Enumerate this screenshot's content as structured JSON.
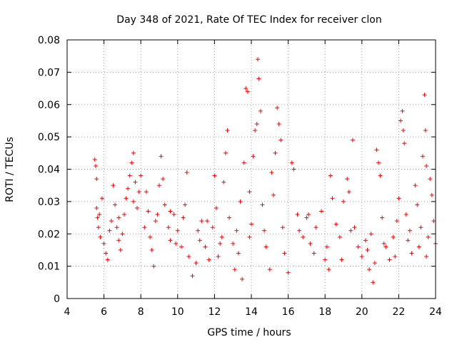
{
  "chart_data": {
    "type": "scatter",
    "title": "Day 348 of 2021, Rate Of TEC Index for receiver clon",
    "xlabel": "GPS time / hours",
    "ylabel": "ROTI / TECUs",
    "xlim": [
      4,
      24
    ],
    "ylim": [
      0,
      0.08
    ],
    "x_ticks": [
      4,
      6,
      8,
      10,
      12,
      14,
      16,
      18,
      20,
      22,
      24
    ],
    "x_tick_labels": [
      "4",
      "6",
      "8",
      "10",
      "12",
      "14",
      "16",
      "18",
      "20",
      "22",
      "24"
    ],
    "y_ticks": [
      0,
      0.01,
      0.02,
      0.03,
      0.04,
      0.05,
      0.06,
      0.07,
      0.08
    ],
    "y_tick_labels": [
      "0",
      "0.01",
      "0.02",
      "0.03",
      "0.04",
      "0.05",
      "0.06",
      "0.07",
      "0.08"
    ],
    "grid": true,
    "marker": "+",
    "color": "#ff0000",
    "series": [
      {
        "name": "ROTI",
        "points": [
          [
            5.5,
            0.043
          ],
          [
            5.55,
            0.041
          ],
          [
            5.6,
            0.037
          ],
          [
            5.6,
            0.028
          ],
          [
            5.65,
            0.025
          ],
          [
            5.7,
            0.022
          ],
          [
            5.75,
            0.026
          ],
          [
            5.8,
            0.019
          ],
          [
            5.9,
            0.031
          ],
          [
            6.0,
            0.017
          ],
          [
            6.1,
            0.014
          ],
          [
            6.2,
            0.012
          ],
          [
            6.3,
            0.021
          ],
          [
            6.4,
            0.024
          ],
          [
            6.5,
            0.035
          ],
          [
            6.6,
            0.029
          ],
          [
            6.7,
            0.022
          ],
          [
            6.8,
            0.018
          ],
          [
            6.9,
            0.015
          ],
          [
            7.0,
            0.02
          ],
          [
            7.1,
            0.026
          ],
          [
            7.2,
            0.031
          ],
          [
            7.3,
            0.034
          ],
          [
            7.4,
            0.038
          ],
          [
            7.5,
            0.042
          ],
          [
            7.6,
            0.045
          ],
          [
            7.7,
            0.036
          ],
          [
            7.8,
            0.028
          ],
          [
            7.9,
            0.033
          ],
          [
            8.0,
            0.038
          ],
          [
            8.2,
            0.022
          ],
          [
            8.4,
            0.027
          ],
          [
            8.5,
            0.019
          ],
          [
            8.6,
            0.015
          ],
          [
            8.7,
            0.01
          ],
          [
            8.8,
            0.024
          ],
          [
            9.0,
            0.035
          ],
          [
            9.1,
            0.044
          ],
          [
            9.2,
            0.037
          ],
          [
            9.3,
            0.029
          ],
          [
            9.5,
            0.022
          ],
          [
            9.6,
            0.018
          ],
          [
            9.8,
            0.026
          ],
          [
            10.0,
            0.021
          ],
          [
            10.2,
            0.016
          ],
          [
            10.4,
            0.029
          ],
          [
            10.5,
            0.039
          ],
          [
            10.6,
            0.013
          ],
          [
            10.8,
            0.007
          ],
          [
            11.0,
            0.011
          ],
          [
            11.2,
            0.018
          ],
          [
            11.3,
            0.024
          ],
          [
            11.5,
            0.016
          ],
          [
            11.7,
            0.012
          ],
          [
            11.9,
            0.022
          ],
          [
            12.0,
            0.038
          ],
          [
            12.1,
            0.028
          ],
          [
            12.2,
            0.013
          ],
          [
            12.4,
            0.019
          ],
          [
            12.5,
            0.036
          ],
          [
            12.6,
            0.045
          ],
          [
            12.7,
            0.052
          ],
          [
            12.8,
            0.025
          ],
          [
            13.0,
            0.017
          ],
          [
            13.1,
            0.009
          ],
          [
            13.2,
            0.021
          ],
          [
            13.4,
            0.03
          ],
          [
            13.5,
            0.006
          ],
          [
            13.6,
            0.042
          ],
          [
            13.7,
            0.065
          ],
          [
            13.8,
            0.064
          ],
          [
            13.9,
            0.033
          ],
          [
            14.0,
            0.023
          ],
          [
            14.1,
            0.044
          ],
          [
            14.2,
            0.052
          ],
          [
            14.3,
            0.054
          ],
          [
            14.35,
            0.074
          ],
          [
            14.4,
            0.068
          ],
          [
            14.5,
            0.058
          ],
          [
            14.6,
            0.029
          ],
          [
            14.8,
            0.016
          ],
          [
            15.0,
            0.009
          ],
          [
            15.1,
            0.039
          ],
          [
            15.2,
            0.032
          ],
          [
            15.3,
            0.045
          ],
          [
            15.4,
            0.059
          ],
          [
            15.5,
            0.054
          ],
          [
            15.6,
            0.049
          ],
          [
            15.8,
            0.014
          ],
          [
            16.0,
            0.008
          ],
          [
            16.2,
            0.042
          ],
          [
            16.3,
            0.04
          ],
          [
            16.5,
            0.026
          ],
          [
            16.8,
            0.019
          ],
          [
            17.0,
            0.025
          ],
          [
            17.2,
            0.017
          ],
          [
            17.5,
            0.022
          ],
          [
            17.8,
            0.027
          ],
          [
            18.0,
            0.012
          ],
          [
            18.2,
            0.009
          ],
          [
            18.3,
            0.038
          ],
          [
            18.4,
            0.031
          ],
          [
            18.6,
            0.023
          ],
          [
            18.8,
            0.019
          ],
          [
            19.0,
            0.03
          ],
          [
            19.2,
            0.037
          ],
          [
            19.3,
            0.033
          ],
          [
            19.5,
            0.049
          ],
          [
            19.6,
            0.022
          ],
          [
            19.8,
            0.016
          ],
          [
            20.0,
            0.013
          ],
          [
            20.2,
            0.018
          ],
          [
            20.4,
            0.009
          ],
          [
            20.6,
            0.005
          ],
          [
            20.7,
            0.011
          ],
          [
            20.8,
            0.046
          ],
          [
            20.9,
            0.042
          ],
          [
            21.0,
            0.038
          ],
          [
            21.1,
            0.025
          ],
          [
            21.3,
            0.016
          ],
          [
            21.5,
            0.012
          ],
          [
            21.7,
            0.019
          ],
          [
            21.9,
            0.024
          ],
          [
            22.0,
            0.031
          ],
          [
            22.1,
            0.055
          ],
          [
            22.2,
            0.058
          ],
          [
            22.25,
            0.052
          ],
          [
            22.3,
            0.048
          ],
          [
            22.4,
            0.026
          ],
          [
            22.5,
            0.018
          ],
          [
            22.7,
            0.014
          ],
          [
            22.9,
            0.035
          ],
          [
            23.0,
            0.029
          ],
          [
            23.2,
            0.022
          ],
          [
            23.3,
            0.044
          ],
          [
            23.4,
            0.063
          ],
          [
            23.45,
            0.052
          ],
          [
            23.5,
            0.041
          ],
          [
            23.6,
            0.019
          ],
          [
            23.7,
            0.037
          ],
          [
            23.8,
            0.032
          ],
          [
            23.9,
            0.024
          ],
          [
            24.0,
            0.017
          ],
          [
            9.6,
            0.027
          ],
          [
            10.3,
            0.025
          ],
          [
            11.1,
            0.021
          ],
          [
            12.3,
            0.017
          ],
          [
            13.3,
            0.014
          ],
          [
            14.7,
            0.021
          ],
          [
            16.6,
            0.021
          ],
          [
            17.4,
            0.014
          ],
          [
            18.1,
            0.016
          ],
          [
            18.9,
            0.012
          ],
          [
            20.3,
            0.015
          ],
          [
            21.2,
            0.017
          ],
          [
            21.8,
            0.013
          ],
          [
            22.6,
            0.021
          ],
          [
            23.1,
            0.016
          ],
          [
            23.5,
            0.013
          ],
          [
            8.9,
            0.026
          ],
          [
            6.8,
            0.025
          ],
          [
            7.6,
            0.03
          ],
          [
            8.3,
            0.033
          ],
          [
            9.9,
            0.017
          ],
          [
            11.6,
            0.024
          ],
          [
            13.9,
            0.019
          ],
          [
            15.7,
            0.022
          ],
          [
            17.1,
            0.026
          ],
          [
            19.4,
            0.021
          ],
          [
            20.5,
            0.02
          ]
        ]
      }
    ]
  }
}
